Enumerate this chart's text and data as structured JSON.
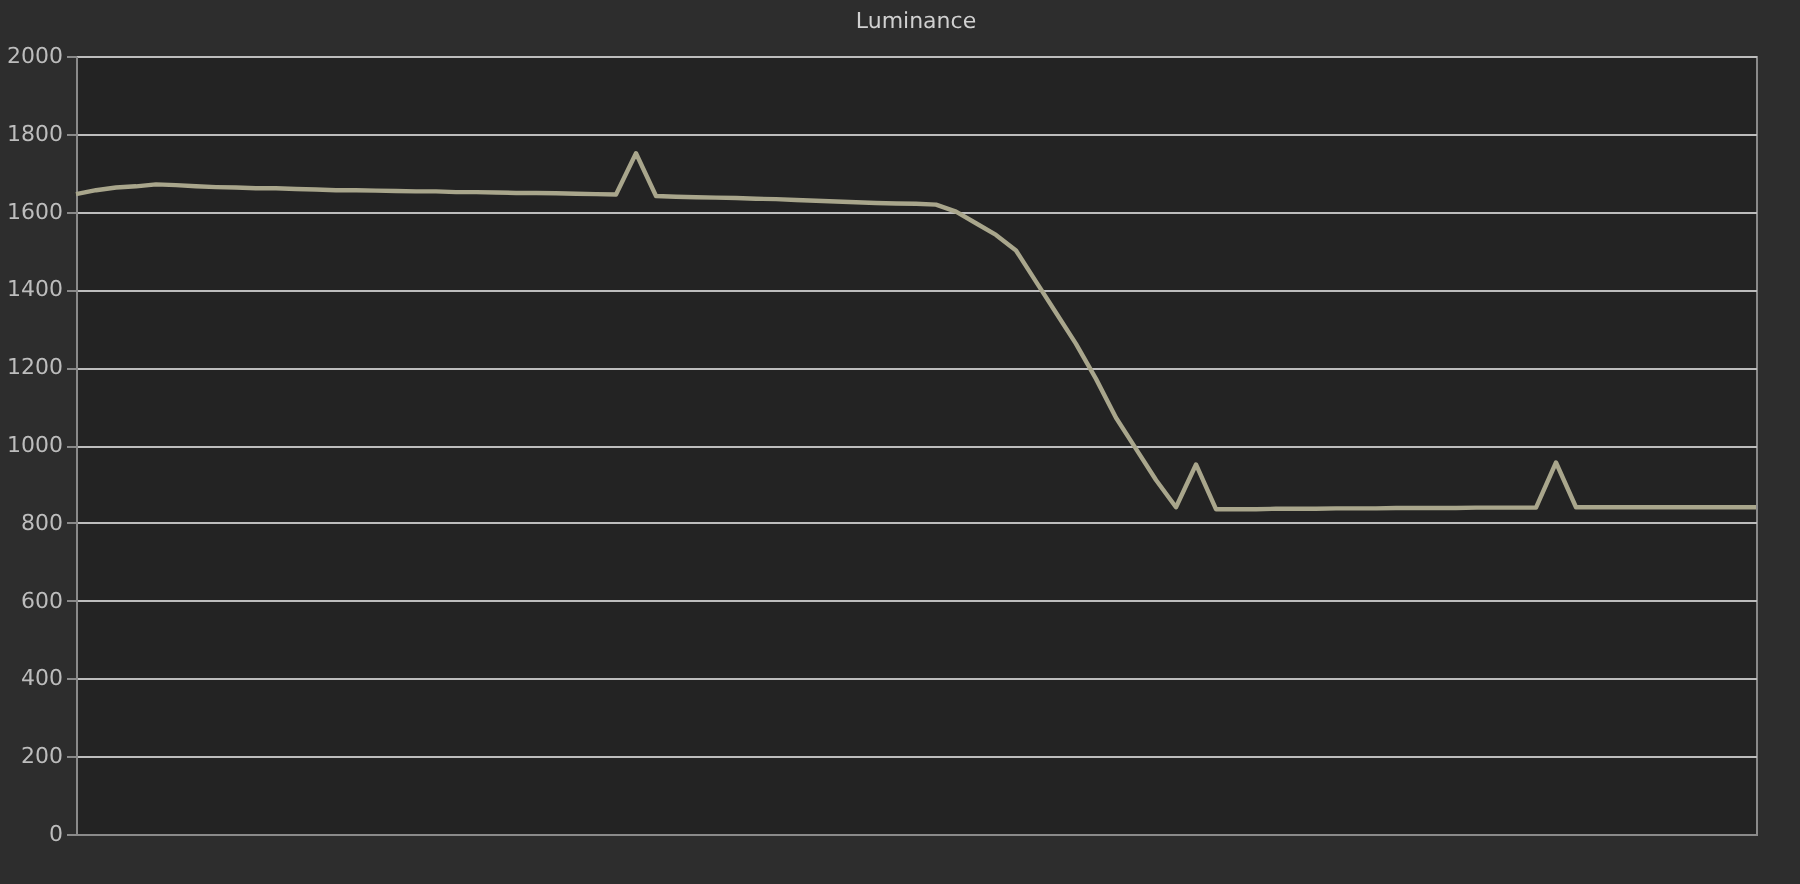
{
  "chart_data": {
    "type": "line",
    "title": "Luminance",
    "categories": [
      null,
      null,
      null,
      null,
      null,
      null,
      null,
      null,
      null,
      null,
      null,
      null,
      null,
      null,
      null,
      null,
      null,
      null,
      null,
      null,
      null,
      null,
      null,
      null,
      null,
      null,
      null,
      null,
      null,
      null,
      null,
      null,
      null,
      null,
      null,
      null,
      null,
      null,
      null,
      null,
      null,
      null,
      null,
      null,
      null,
      null,
      null,
      null,
      null,
      null,
      null,
      null,
      null,
      null,
      null,
      null,
      null,
      null,
      null,
      null,
      null,
      null,
      null,
      null,
      null,
      null,
      null,
      null,
      null,
      null,
      null,
      null,
      null,
      null,
      null,
      null,
      null,
      null,
      null,
      null,
      null,
      null,
      null,
      null,
      null
    ],
    "series": [
      {
        "color": "#a9a68c",
        "values": [
          1645,
          1655,
          1662,
          1665,
          1670,
          1668,
          1665,
          1663,
          1662,
          1660,
          1660,
          1658,
          1657,
          1655,
          1655,
          1654,
          1653,
          1652,
          1652,
          1650,
          1650,
          1649,
          1648,
          1648,
          1647,
          1646,
          1645,
          1644,
          1750,
          1640,
          1638,
          1637,
          1636,
          1635,
          1633,
          1632,
          1630,
          1628,
          1626,
          1624,
          1622,
          1621,
          1620,
          1618,
          1600,
          1570,
          1540,
          1500,
          1420,
          1340,
          1260,
          1170,
          1070,
          990,
          910,
          840,
          950,
          835,
          835,
          835,
          836,
          836,
          836,
          837,
          837,
          837,
          838,
          838,
          838,
          838,
          839,
          839,
          839,
          839,
          955,
          840,
          840,
          840,
          840,
          840,
          840,
          840,
          840,
          840,
          840
        ]
      }
    ],
    "ylim": [
      0,
      2000
    ],
    "yticks": [
      0,
      200,
      400,
      600,
      800,
      1000,
      1200,
      1400,
      1600,
      1800,
      2000
    ],
    "grid": "y",
    "tick_labels": "y",
    "marker": "none",
    "line_style": "solid"
  }
}
